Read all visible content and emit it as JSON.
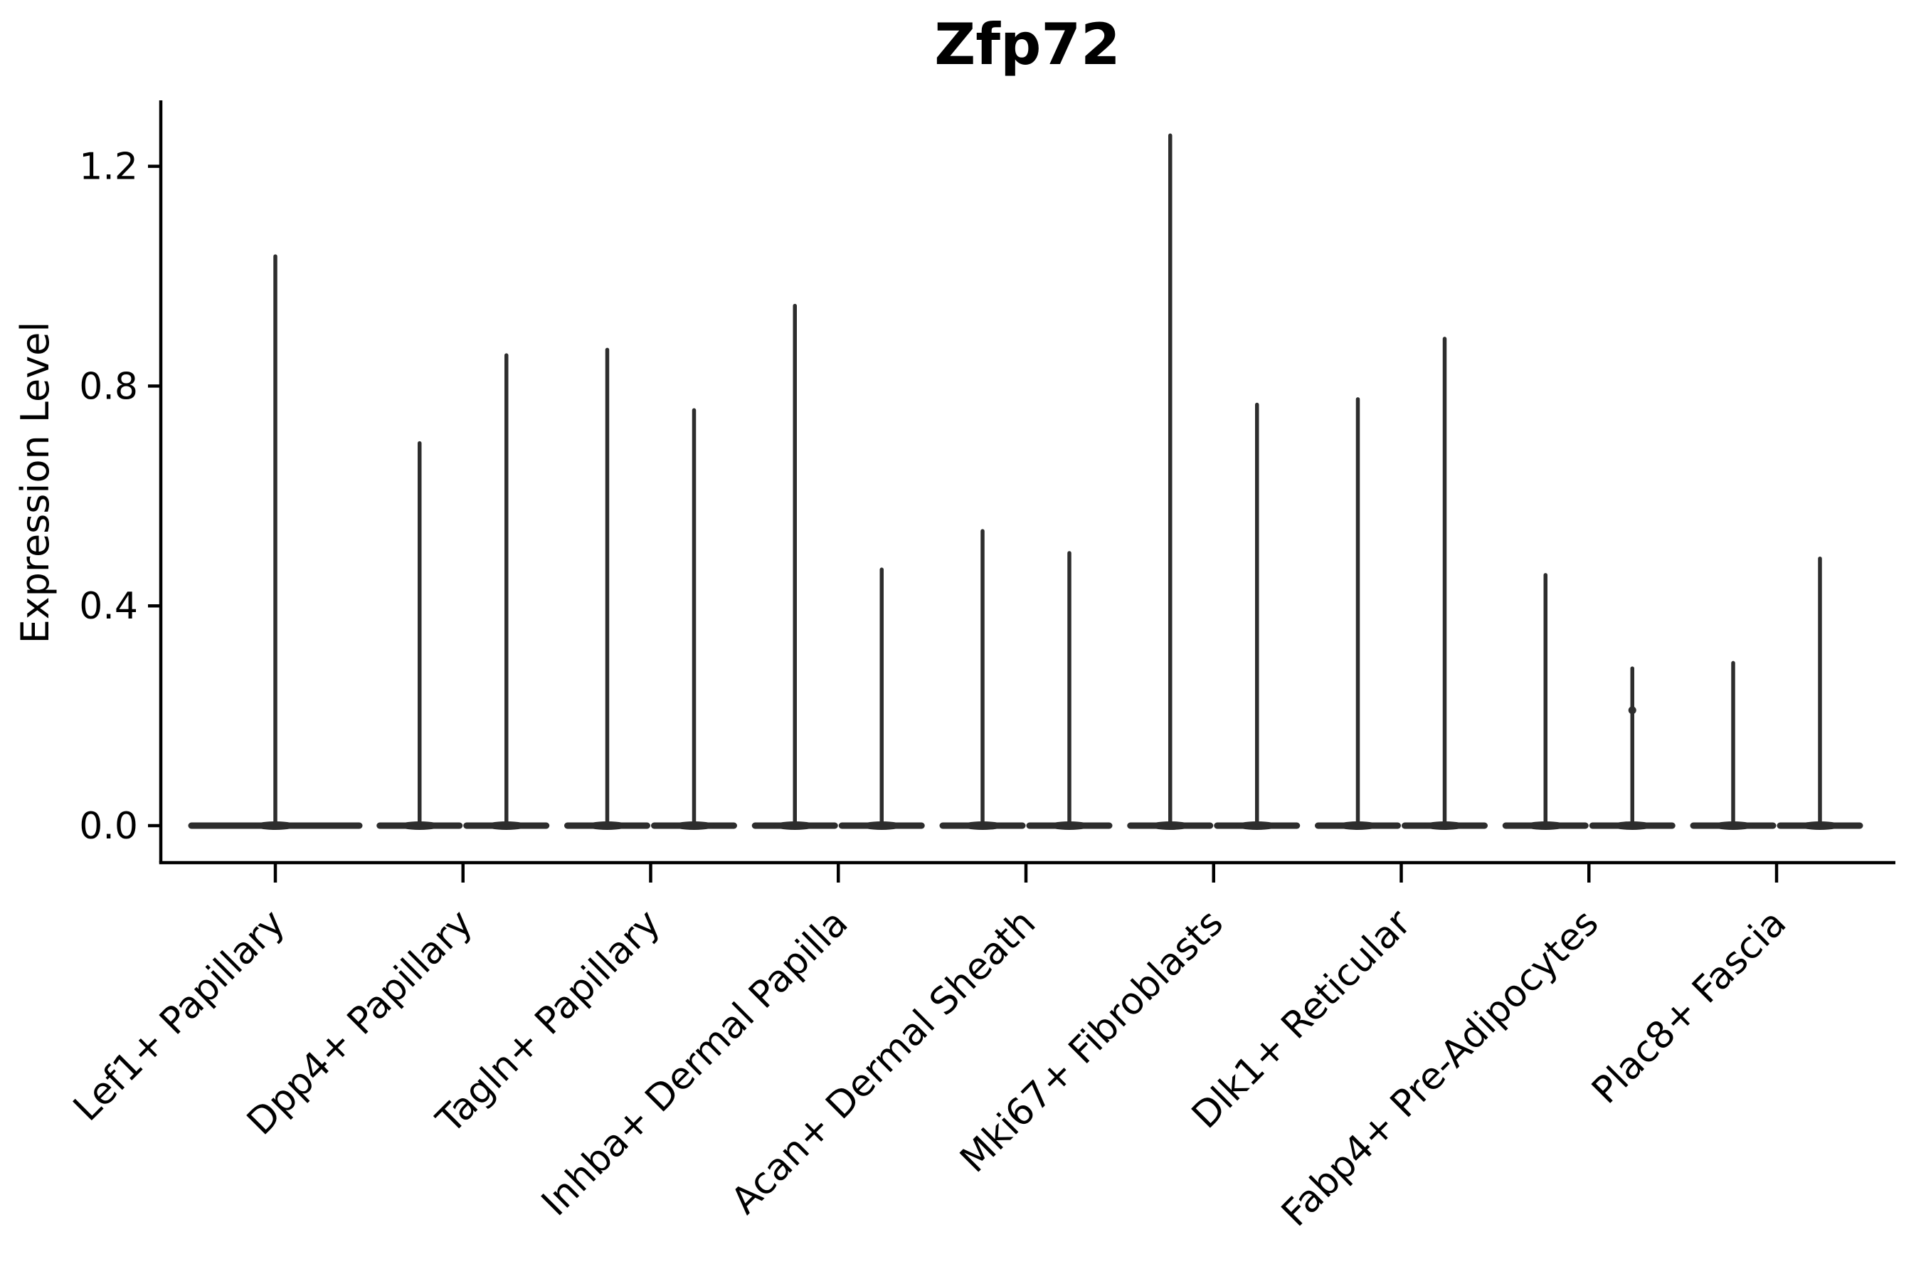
{
  "title": "Zfp72",
  "axes": {
    "ylabel": "Expression Level"
  },
  "chart_data": {
    "type": "violin",
    "title": "Zfp72",
    "xlabel": "",
    "ylabel": "Expression Level",
    "ylim": [
      -0.066,
      1.32
    ],
    "yticks": [
      0.0,
      0.4,
      0.8,
      1.2
    ],
    "ytick_labels": [
      "0.0",
      "0.4",
      "0.8",
      "1.2"
    ],
    "grid": false,
    "legend": "none",
    "line_color": "#2d2d2d",
    "axis_color": "#000000",
    "baseline_value": 0.0,
    "categories": [
      "Lef1+ Papillary",
      "Dpp4+ Papillary",
      "Tagln+ Papillary",
      "Inhba+ Dermal Papilla",
      "Acan+ Dermal Sheath",
      "Mki67+ Fibroblasts",
      "Dlk1+ Reticular",
      "Fabp4+ Pre-Adipocytes",
      "Plac8+ Fascia"
    ],
    "violins": [
      {
        "category": "Lef1+ Papillary",
        "groups": [
          {
            "max": 1.04
          }
        ]
      },
      {
        "category": "Dpp4+ Papillary",
        "groups": [
          {
            "max": 0.7
          },
          {
            "max": 0.86
          }
        ]
      },
      {
        "category": "Tagln+ Papillary",
        "groups": [
          {
            "max": 0.87
          },
          {
            "max": 0.76
          }
        ]
      },
      {
        "category": "Inhba+ Dermal Papilla",
        "groups": [
          {
            "max": 0.95
          },
          {
            "max": 0.47
          }
        ]
      },
      {
        "category": "Acan+ Dermal Sheath",
        "groups": [
          {
            "max": 0.54
          },
          {
            "max": 0.5
          }
        ]
      },
      {
        "category": "Mki67+ Fibroblasts",
        "groups": [
          {
            "max": 1.26
          },
          {
            "max": 0.77
          }
        ]
      },
      {
        "category": "Dlk1+ Reticular",
        "groups": [
          {
            "max": 0.78
          },
          {
            "max": 0.89
          }
        ]
      },
      {
        "category": "Fabp4+ Pre-Adipocytes",
        "groups": [
          {
            "max": 0.46
          },
          {
            "max": 0.29,
            "bump": 0.21
          }
        ]
      },
      {
        "category": "Plac8+ Fascia",
        "groups": [
          {
            "max": 0.3
          },
          {
            "max": 0.49
          }
        ]
      }
    ]
  }
}
